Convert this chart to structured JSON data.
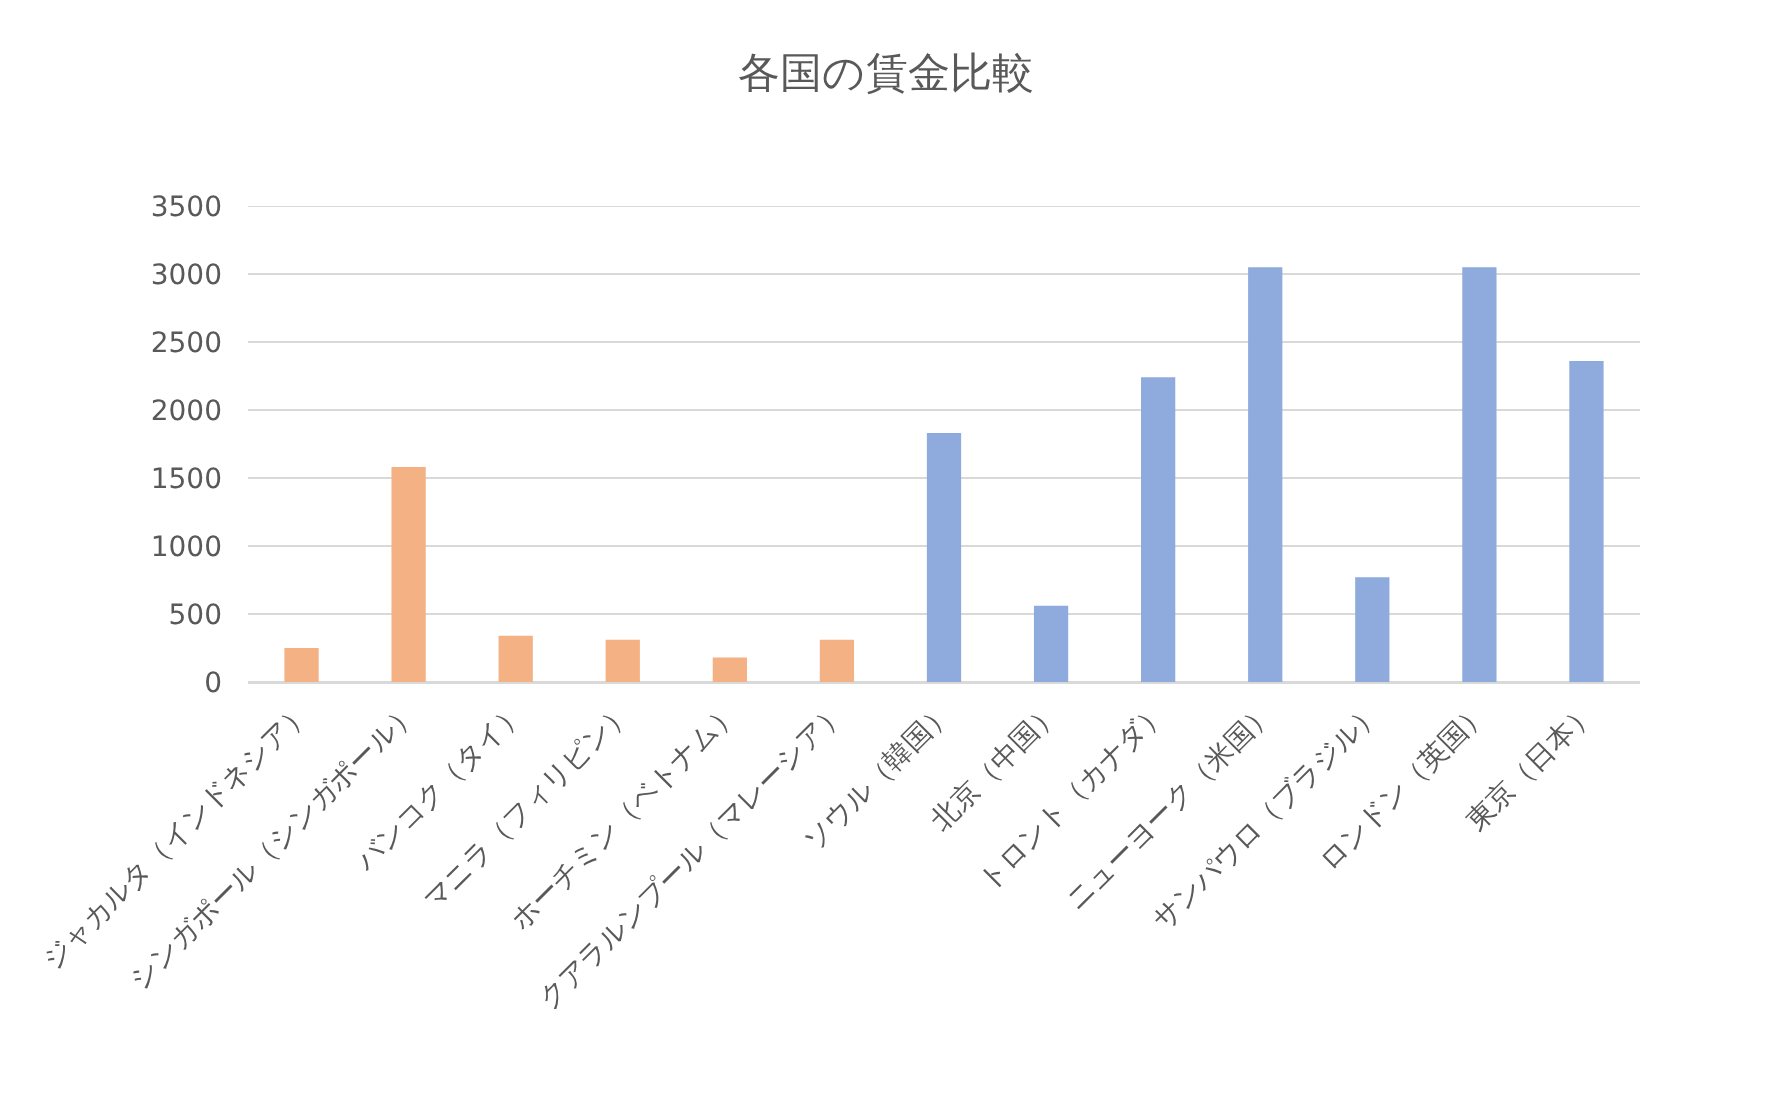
{
  "chart_data": {
    "type": "bar",
    "title": "各国の賃金比較",
    "categories": [
      "ジャカルタ（インドネシア）",
      "シンガポール（シンガポール）",
      "バンコク（タイ）",
      "マニラ（フィリピン）",
      "ホーチミン（ベトナム）",
      "クアラルンプール（マレーシア）",
      "ソウル（韓国）",
      "北京（中国）",
      "トロント（カナダ）",
      "ニューヨーク（米国）",
      "サンパウロ（ブラジル）",
      "ロンドン（英国）",
      "東京（日本）"
    ],
    "values": [
      250,
      1580,
      340,
      310,
      180,
      310,
      1830,
      560,
      2240,
      3050,
      770,
      3050,
      2360
    ],
    "colors": [
      "#f4b183",
      "#f4b183",
      "#f4b183",
      "#f4b183",
      "#f4b183",
      "#f4b183",
      "#8faadc",
      "#8faadc",
      "#8faadc",
      "#8faadc",
      "#8faadc",
      "#8faadc",
      "#8faadc"
    ],
    "ylim": [
      0,
      3500
    ],
    "yticks": [
      0,
      500,
      1000,
      1500,
      2000,
      2500,
      3000,
      3500
    ],
    "grid": "y"
  }
}
